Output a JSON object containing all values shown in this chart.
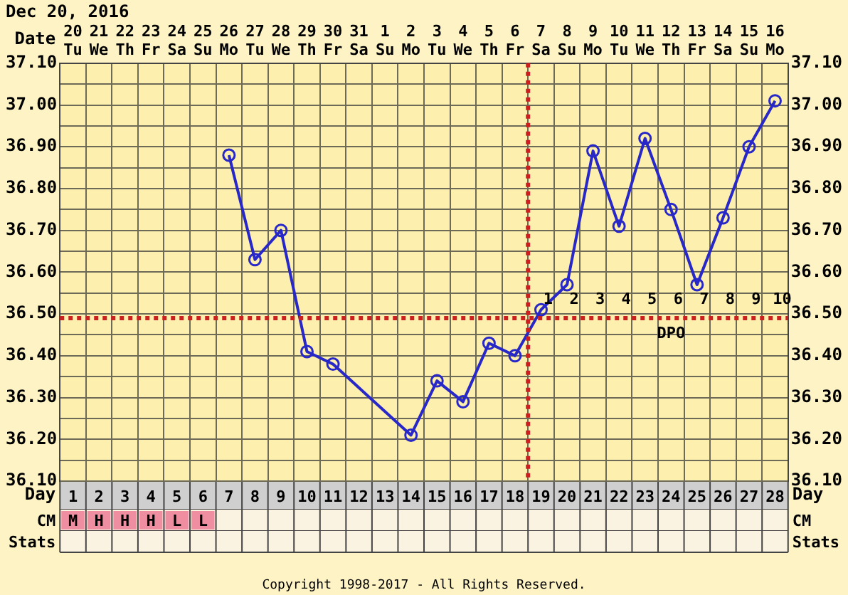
{
  "chart_data": {
    "type": "line",
    "title": "Dec 20, 2016",
    "xlabel": "Date",
    "categories": [
      "20 Tu",
      "21 We",
      "22 Th",
      "23 Fr",
      "24 Sa",
      "25 Su",
      "26 Mo",
      "27 Tu",
      "28 We",
      "29 Th",
      "30 Fr",
      "31 Sa",
      "1 Su",
      "2 Mo",
      "3 Tu",
      "4 We",
      "5 Th",
      "6 Fr",
      "7 Sa",
      "8 Su",
      "9 Mo",
      "10 Tu",
      "11 We",
      "12 Th",
      "13 Fr",
      "14 Sa",
      "15 Su",
      "16 Mo"
    ],
    "series": [
      {
        "color": "#2828c8",
        "values": [
          null,
          null,
          null,
          null,
          null,
          null,
          36.88,
          36.63,
          36.7,
          36.41,
          36.38,
          null,
          null,
          36.21,
          36.34,
          36.29,
          36.43,
          36.4,
          36.51,
          36.57,
          36.89,
          36.71,
          36.92,
          36.75,
          36.57,
          36.73,
          36.9,
          37.01
        ]
      }
    ],
    "ylim": [
      36.1,
      37.1
    ],
    "yticks": [
      {
        "value": 36.1,
        "label": "36.10"
      },
      {
        "value": 36.15,
        "label": null
      },
      {
        "value": 36.2,
        "label": "36.20"
      },
      {
        "value": 36.25,
        "label": null
      },
      {
        "value": 36.3,
        "label": "36.30"
      },
      {
        "value": 36.35,
        "label": null
      },
      {
        "value": 36.4,
        "label": "36.40"
      },
      {
        "value": 36.45,
        "label": null
      },
      {
        "value": 36.5,
        "label": "36.50"
      },
      {
        "value": 36.55,
        "label": null
      },
      {
        "value": 36.6,
        "label": "36.60"
      },
      {
        "value": 36.65,
        "label": null
      },
      {
        "value": 36.7,
        "label": "36.70"
      },
      {
        "value": 36.75,
        "label": null
      },
      {
        "value": 36.8,
        "label": "36.80"
      },
      {
        "value": 36.85,
        "label": null
      },
      {
        "value": 36.9,
        "label": "36.90"
      },
      {
        "value": 36.95,
        "label": null
      },
      {
        "value": 37.0,
        "label": "37.00"
      },
      {
        "value": 37.05,
        "label": null
      },
      {
        "value": 37.1,
        "label": "37.10"
      }
    ],
    "y2lim": [
      36.1,
      37.1
    ],
    "y2ticks": [
      {
        "value": 36.1,
        "label": "36.10"
      },
      {
        "value": 36.2,
        "label": "36.20"
      },
      {
        "value": 36.3,
        "label": "36.30"
      },
      {
        "value": 36.4,
        "label": "36.40"
      },
      {
        "value": 36.5,
        "label": "36.50"
      },
      {
        "value": 36.6,
        "label": "36.60"
      },
      {
        "value": 36.7,
        "label": "36.70"
      },
      {
        "value": 36.8,
        "label": "36.80"
      },
      {
        "value": 36.9,
        "label": "36.90"
      },
      {
        "value": 37.0,
        "label": "37.00"
      },
      {
        "value": 37.1,
        "label": "37.10"
      }
    ],
    "x2lim": [
      0.5,
      28.5
    ],
    "x2ticks": [
      1,
      2,
      3,
      4,
      5,
      6,
      7,
      8,
      9,
      10,
      11,
      12,
      13,
      14,
      15,
      16,
      17,
      18,
      19,
      20,
      21,
      22,
      23,
      24,
      25,
      26,
      27,
      28
    ],
    "x2label": "Day",
    "ref_lines": [
      {
        "axis": "y",
        "value": 36.49,
        "color": "#cc2020",
        "line_style": "dotted"
      },
      {
        "axis": "x",
        "value": "6 Fr",
        "color": "#cc2020",
        "line_style": "dotted"
      }
    ],
    "grid": true,
    "legend": false,
    "marker": "circle",
    "line_style": "solid",
    "annotations": [
      "Copyright 1998-2017 - All Rights Reserved.",
      "CM",
      "M",
      "H",
      "H",
      "H",
      "L",
      "L",
      "Stats",
      {
        "text": "1",
        "x": "7 Sa",
        "y": 36.49
      },
      {
        "text": "2",
        "x": "8 Su",
        "y": 36.49
      },
      {
        "text": "3",
        "x": "9 Mo",
        "y": 36.49
      },
      {
        "text": "4",
        "x": "10 Tu",
        "y": 36.49
      },
      {
        "text": "5",
        "x": "11 We",
        "y": 36.49
      },
      {
        "text": "6",
        "x": "12 Th",
        "y": 36.49
      },
      {
        "text": "7",
        "x": "13 Fr",
        "y": 36.49
      },
      {
        "text": "8",
        "x": "14 Sa",
        "y": 36.49
      },
      {
        "text": "9",
        "x": "15 Su",
        "y": 36.49
      },
      {
        "text": "10",
        "x": "16 Mo",
        "y": 36.49
      },
      {
        "text": "DPO",
        "x": "12 Th",
        "y": 36.49
      }
    ]
  }
}
